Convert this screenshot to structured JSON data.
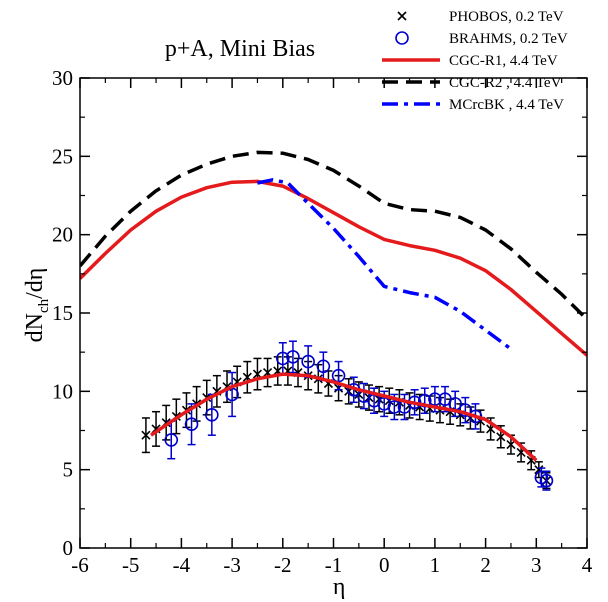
{
  "chart_data": {
    "type": "line",
    "title": "p+A, Mini Bias",
    "xlabel": "η",
    "ylabel": "dN",
    "ylabel_sub": "ch",
    "ylabel_tail": "/dη",
    "xlim": [
      -6,
      4
    ],
    "ylim": [
      0,
      30
    ],
    "xticks": [
      -6,
      -5,
      -4,
      -3,
      -2,
      -1,
      0,
      1,
      2,
      3,
      4
    ],
    "yticks": [
      0,
      5,
      10,
      15,
      20,
      25,
      30
    ],
    "grid": false,
    "legend_position": "top-right",
    "series": [
      {
        "name": "PHOBOS, 0.2 TeV",
        "kind": "points",
        "marker": "x",
        "color": "#000000",
        "x": [
          -4.7,
          -4.5,
          -4.3,
          -4.1,
          -3.9,
          -3.7,
          -3.5,
          -3.3,
          -3.1,
          -2.9,
          -2.7,
          -2.5,
          -2.3,
          -2.1,
          -1.9,
          -1.7,
          -1.5,
          -1.3,
          -1.1,
          -0.9,
          -0.7,
          -0.5,
          -0.3,
          -0.1,
          0.1,
          0.3,
          0.5,
          0.7,
          0.9,
          1.1,
          1.3,
          1.5,
          1.7,
          1.9,
          2.1,
          2.3,
          2.5,
          2.7,
          2.9,
          3.05,
          3.2
        ],
        "y": [
          7.2,
          7.6,
          8.0,
          8.4,
          8.8,
          9.2,
          9.6,
          10.0,
          10.3,
          10.6,
          10.9,
          11.1,
          11.2,
          11.3,
          11.3,
          11.2,
          11.0,
          10.8,
          10.5,
          10.2,
          10.0,
          9.8,
          9.6,
          9.5,
          9.4,
          9.3,
          9.1,
          9.0,
          8.9,
          8.8,
          8.7,
          8.5,
          8.3,
          8.1,
          7.6,
          7.1,
          6.6,
          6.1,
          5.6,
          5.0,
          4.3
        ],
        "err": [
          1.1,
          1.1,
          1.1,
          1.1,
          1.1,
          1.1,
          1.1,
          1.0,
          1.0,
          1.0,
          1.0,
          1.0,
          0.9,
          0.9,
          0.9,
          0.9,
          0.9,
          0.9,
          0.8,
          0.8,
          0.8,
          0.8,
          0.8,
          0.8,
          0.8,
          0.8,
          0.8,
          0.8,
          0.8,
          0.8,
          0.8,
          0.7,
          0.7,
          0.7,
          0.7,
          0.7,
          0.6,
          0.6,
          0.6,
          0.5,
          0.5
        ]
      },
      {
        "name": "BRAHMS, 0.2 TeV",
        "kind": "points",
        "marker": "circle",
        "color": "#0000cc",
        "x": [
          -4.2,
          -3.8,
          -3.4,
          -3.0,
          -2.0,
          -1.8,
          -1.5,
          -1.2,
          -0.9,
          -0.6,
          -0.4,
          -0.2,
          0.0,
          0.2,
          0.4,
          0.6,
          0.8,
          1.0,
          1.2,
          1.4,
          1.6,
          1.8,
          3.1,
          3.2
        ],
        "y": [
          6.9,
          7.9,
          8.5,
          9.8,
          12.1,
          12.2,
          11.9,
          11.6,
          11.0,
          10.1,
          9.7,
          9.4,
          9.2,
          9.0,
          9.0,
          9.3,
          9.4,
          9.5,
          9.5,
          9.2,
          8.8,
          8.4,
          4.5,
          4.3
        ],
        "err": [
          1.2,
          1.3,
          1.3,
          1.4,
          1.0,
          1.0,
          1.0,
          0.9,
          0.9,
          0.8,
          0.8,
          0.8,
          0.8,
          0.8,
          0.8,
          0.8,
          0.8,
          0.8,
          0.8,
          0.8,
          0.8,
          0.8,
          0.6,
          0.6
        ]
      },
      {
        "name": "CGC-R1, 4.4 TeV",
        "kind": "line",
        "style": "solid",
        "color": "#e41a1c",
        "x": [
          -6,
          -5.5,
          -5,
          -4.5,
          -4,
          -3.5,
          -3,
          -2.5,
          -2,
          -1.5,
          -1,
          -0.5,
          0,
          0.5,
          1,
          1.5,
          2,
          2.5,
          3,
          3.5,
          4
        ],
        "y": [
          17.2,
          18.8,
          20.3,
          21.5,
          22.4,
          23.0,
          23.35,
          23.4,
          23.1,
          22.3,
          21.4,
          20.5,
          19.7,
          19.3,
          19.0,
          18.5,
          17.7,
          16.5,
          15.1,
          13.7,
          12.3
        ]
      },
      {
        "name": "CGC-R2 , 4.4 TeV",
        "kind": "line",
        "style": "dashed",
        "color": "#000000",
        "x": [
          -6,
          -5.5,
          -5,
          -4.5,
          -4,
          -3.5,
          -3,
          -2.5,
          -2,
          -1.5,
          -1,
          -0.5,
          0,
          0.5,
          1,
          1.5,
          2,
          2.5,
          3,
          3.5,
          4
        ],
        "y": [
          18.0,
          19.9,
          21.5,
          22.8,
          23.8,
          24.5,
          25.0,
          25.25,
          25.2,
          24.8,
          24.1,
          23.1,
          22.0,
          21.6,
          21.5,
          21.1,
          20.3,
          19.1,
          17.6,
          16.2,
          14.6
        ]
      },
      {
        "name": "MCrcBK , 4.4 TeV",
        "kind": "line",
        "style": "dashdot",
        "color": "#0000ff",
        "x": [
          -2.5,
          -2.2,
          -1.9,
          -1.5,
          -1.0,
          -0.5,
          0,
          0.5,
          1.0,
          1.5,
          2.0,
          2.5
        ],
        "y": [
          23.3,
          23.5,
          23.3,
          22.0,
          20.4,
          18.6,
          16.7,
          16.3,
          16.0,
          15.1,
          13.9,
          12.7
        ]
      },
      {
        "name": "",
        "kind": "line",
        "style": "solid",
        "color": "#e41a1c",
        "x": [
          -4.6,
          -4,
          -3.5,
          -3,
          -2.5,
          -2,
          -1.5,
          -1,
          -0.5,
          0,
          0.5,
          1,
          1.5,
          2,
          2.5,
          3
        ],
        "y": [
          7.2,
          8.5,
          9.5,
          10.3,
          10.8,
          11.1,
          11.0,
          10.6,
          10.1,
          9.7,
          9.3,
          9.0,
          8.7,
          8.2,
          7.1,
          5.6
        ]
      }
    ]
  }
}
